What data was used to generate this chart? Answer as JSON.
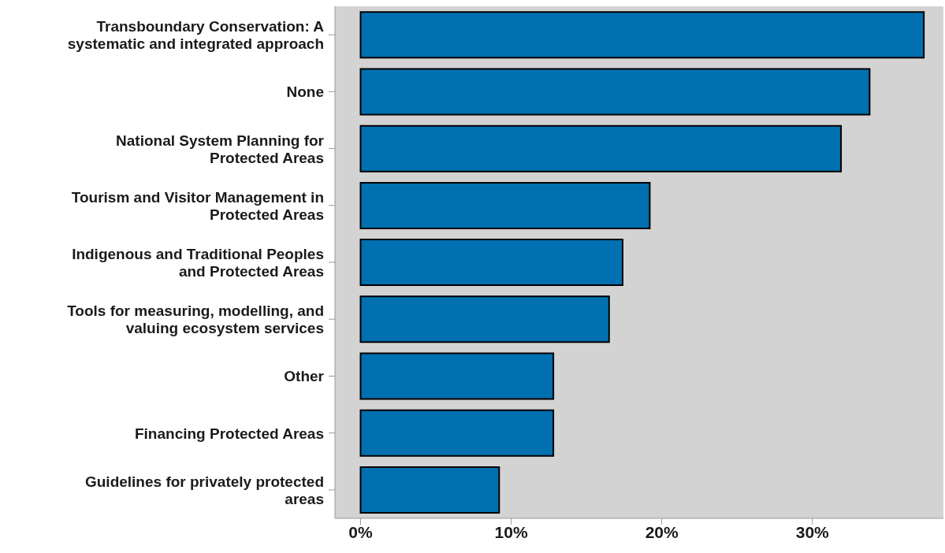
{
  "chart_data": {
    "type": "bar",
    "orientation": "horizontal",
    "categories": [
      "Transboundary Conservation: A systematic and integrated approach",
      "None",
      "National System Planning for Protected Areas",
      "Tourism and Visitor Management in Protected Areas",
      "Indigenous and Traditional Peoples and Protected Areas",
      "Tools for measuring, modelling, and valuing ecosystem services",
      "Other",
      "Financing Protected Areas",
      "Guidelines for privately protected areas"
    ],
    "values": [
      37.4,
      33.8,
      31.9,
      19.2,
      17.4,
      16.5,
      12.8,
      12.8,
      9.2
    ],
    "color": "#0070b0",
    "xlim": [
      -1.7,
      38.7
    ],
    "xticks": [
      {
        "value": 0,
        "label": "0%"
      },
      {
        "value": 10,
        "label": "10%"
      },
      {
        "value": 20,
        "label": "20%"
      },
      {
        "value": 30,
        "label": "30%"
      }
    ],
    "grid": false
  }
}
